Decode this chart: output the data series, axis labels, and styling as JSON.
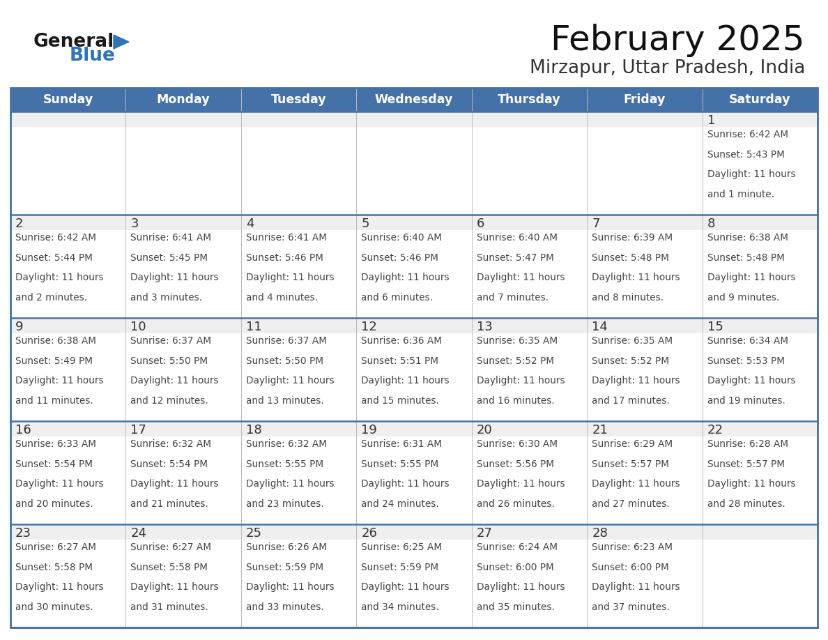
{
  "title": "February 2025",
  "subtitle": "Mirzapur, Uttar Pradesh, India",
  "days_of_week": [
    "Sunday",
    "Monday",
    "Tuesday",
    "Wednesday",
    "Thursday",
    "Friday",
    "Saturday"
  ],
  "header_bg": "#4472A8",
  "header_text": "#FFFFFF",
  "cell_bg_grey": "#EFEFEF",
  "cell_bg_white": "#FFFFFF",
  "border_color": "#4472A8",
  "text_color": "#444444",
  "day_num_color": "#333333",
  "logo_general_color": "#1a1a1a",
  "logo_blue_color": "#2E75B6",
  "calendar": [
    [
      {
        "day": null,
        "sunrise": null,
        "sunset": null,
        "daylight_line1": null,
        "daylight_line2": null
      },
      {
        "day": null,
        "sunrise": null,
        "sunset": null,
        "daylight_line1": null,
        "daylight_line2": null
      },
      {
        "day": null,
        "sunrise": null,
        "sunset": null,
        "daylight_line1": null,
        "daylight_line2": null
      },
      {
        "day": null,
        "sunrise": null,
        "sunset": null,
        "daylight_line1": null,
        "daylight_line2": null
      },
      {
        "day": null,
        "sunrise": null,
        "sunset": null,
        "daylight_line1": null,
        "daylight_line2": null
      },
      {
        "day": null,
        "sunrise": null,
        "sunset": null,
        "daylight_line1": null,
        "daylight_line2": null
      },
      {
        "day": 1,
        "sunrise": "Sunrise: 6:42 AM",
        "sunset": "Sunset: 5:43 PM",
        "daylight_line1": "Daylight: 11 hours",
        "daylight_line2": "and 1 minute."
      }
    ],
    [
      {
        "day": 2,
        "sunrise": "Sunrise: 6:42 AM",
        "sunset": "Sunset: 5:44 PM",
        "daylight_line1": "Daylight: 11 hours",
        "daylight_line2": "and 2 minutes."
      },
      {
        "day": 3,
        "sunrise": "Sunrise: 6:41 AM",
        "sunset": "Sunset: 5:45 PM",
        "daylight_line1": "Daylight: 11 hours",
        "daylight_line2": "and 3 minutes."
      },
      {
        "day": 4,
        "sunrise": "Sunrise: 6:41 AM",
        "sunset": "Sunset: 5:46 PM",
        "daylight_line1": "Daylight: 11 hours",
        "daylight_line2": "and 4 minutes."
      },
      {
        "day": 5,
        "sunrise": "Sunrise: 6:40 AM",
        "sunset": "Sunset: 5:46 PM",
        "daylight_line1": "Daylight: 11 hours",
        "daylight_line2": "and 6 minutes."
      },
      {
        "day": 6,
        "sunrise": "Sunrise: 6:40 AM",
        "sunset": "Sunset: 5:47 PM",
        "daylight_line1": "Daylight: 11 hours",
        "daylight_line2": "and 7 minutes."
      },
      {
        "day": 7,
        "sunrise": "Sunrise: 6:39 AM",
        "sunset": "Sunset: 5:48 PM",
        "daylight_line1": "Daylight: 11 hours",
        "daylight_line2": "and 8 minutes."
      },
      {
        "day": 8,
        "sunrise": "Sunrise: 6:38 AM",
        "sunset": "Sunset: 5:48 PM",
        "daylight_line1": "Daylight: 11 hours",
        "daylight_line2": "and 9 minutes."
      }
    ],
    [
      {
        "day": 9,
        "sunrise": "Sunrise: 6:38 AM",
        "sunset": "Sunset: 5:49 PM",
        "daylight_line1": "Daylight: 11 hours",
        "daylight_line2": "and 11 minutes."
      },
      {
        "day": 10,
        "sunrise": "Sunrise: 6:37 AM",
        "sunset": "Sunset: 5:50 PM",
        "daylight_line1": "Daylight: 11 hours",
        "daylight_line2": "and 12 minutes."
      },
      {
        "day": 11,
        "sunrise": "Sunrise: 6:37 AM",
        "sunset": "Sunset: 5:50 PM",
        "daylight_line1": "Daylight: 11 hours",
        "daylight_line2": "and 13 minutes."
      },
      {
        "day": 12,
        "sunrise": "Sunrise: 6:36 AM",
        "sunset": "Sunset: 5:51 PM",
        "daylight_line1": "Daylight: 11 hours",
        "daylight_line2": "and 15 minutes."
      },
      {
        "day": 13,
        "sunrise": "Sunrise: 6:35 AM",
        "sunset": "Sunset: 5:52 PM",
        "daylight_line1": "Daylight: 11 hours",
        "daylight_line2": "and 16 minutes."
      },
      {
        "day": 14,
        "sunrise": "Sunrise: 6:35 AM",
        "sunset": "Sunset: 5:52 PM",
        "daylight_line1": "Daylight: 11 hours",
        "daylight_line2": "and 17 minutes."
      },
      {
        "day": 15,
        "sunrise": "Sunrise: 6:34 AM",
        "sunset": "Sunset: 5:53 PM",
        "daylight_line1": "Daylight: 11 hours",
        "daylight_line2": "and 19 minutes."
      }
    ],
    [
      {
        "day": 16,
        "sunrise": "Sunrise: 6:33 AM",
        "sunset": "Sunset: 5:54 PM",
        "daylight_line1": "Daylight: 11 hours",
        "daylight_line2": "and 20 minutes."
      },
      {
        "day": 17,
        "sunrise": "Sunrise: 6:32 AM",
        "sunset": "Sunset: 5:54 PM",
        "daylight_line1": "Daylight: 11 hours",
        "daylight_line2": "and 21 minutes."
      },
      {
        "day": 18,
        "sunrise": "Sunrise: 6:32 AM",
        "sunset": "Sunset: 5:55 PM",
        "daylight_line1": "Daylight: 11 hours",
        "daylight_line2": "and 23 minutes."
      },
      {
        "day": 19,
        "sunrise": "Sunrise: 6:31 AM",
        "sunset": "Sunset: 5:55 PM",
        "daylight_line1": "Daylight: 11 hours",
        "daylight_line2": "and 24 minutes."
      },
      {
        "day": 20,
        "sunrise": "Sunrise: 6:30 AM",
        "sunset": "Sunset: 5:56 PM",
        "daylight_line1": "Daylight: 11 hours",
        "daylight_line2": "and 26 minutes."
      },
      {
        "day": 21,
        "sunrise": "Sunrise: 6:29 AM",
        "sunset": "Sunset: 5:57 PM",
        "daylight_line1": "Daylight: 11 hours",
        "daylight_line2": "and 27 minutes."
      },
      {
        "day": 22,
        "sunrise": "Sunrise: 6:28 AM",
        "sunset": "Sunset: 5:57 PM",
        "daylight_line1": "Daylight: 11 hours",
        "daylight_line2": "and 28 minutes."
      }
    ],
    [
      {
        "day": 23,
        "sunrise": "Sunrise: 6:27 AM",
        "sunset": "Sunset: 5:58 PM",
        "daylight_line1": "Daylight: 11 hours",
        "daylight_line2": "and 30 minutes."
      },
      {
        "day": 24,
        "sunrise": "Sunrise: 6:27 AM",
        "sunset": "Sunset: 5:58 PM",
        "daylight_line1": "Daylight: 11 hours",
        "daylight_line2": "and 31 minutes."
      },
      {
        "day": 25,
        "sunrise": "Sunrise: 6:26 AM",
        "sunset": "Sunset: 5:59 PM",
        "daylight_line1": "Daylight: 11 hours",
        "daylight_line2": "and 33 minutes."
      },
      {
        "day": 26,
        "sunrise": "Sunrise: 6:25 AM",
        "sunset": "Sunset: 5:59 PM",
        "daylight_line1": "Daylight: 11 hours",
        "daylight_line2": "and 34 minutes."
      },
      {
        "day": 27,
        "sunrise": "Sunrise: 6:24 AM",
        "sunset": "Sunset: 6:00 PM",
        "daylight_line1": "Daylight: 11 hours",
        "daylight_line2": "and 35 minutes."
      },
      {
        "day": 28,
        "sunrise": "Sunrise: 6:23 AM",
        "sunset": "Sunset: 6:00 PM",
        "daylight_line1": "Daylight: 11 hours",
        "daylight_line2": "and 37 minutes."
      },
      {
        "day": null,
        "sunrise": null,
        "sunset": null,
        "daylight_line1": null,
        "daylight_line2": null
      }
    ]
  ]
}
